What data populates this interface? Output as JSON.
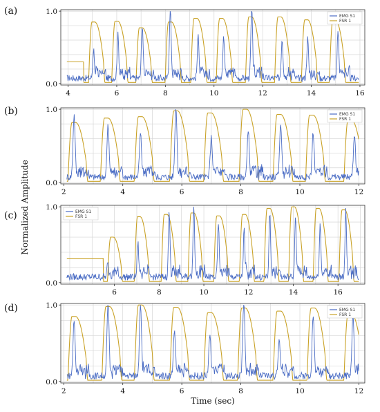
{
  "figure": {
    "ylabel": "Normalized Amplitude",
    "xlabel": "Time (sec)"
  },
  "colors": {
    "emg": "#4a6cc4",
    "fsr": "#c9a227",
    "grid": "#d6d6d6",
    "axis": "#333333"
  },
  "chart_data": [
    {
      "type": "line",
      "label": "(a)",
      "xlim": [
        3.7,
        16.2
      ],
      "ylim": [
        -0.02,
        1.02
      ],
      "xticks": [
        4,
        6,
        8,
        10,
        12,
        14,
        16
      ],
      "yticks": [
        0.0,
        1.0
      ],
      "legend": {
        "placement": "top-right",
        "entries": [
          "EMG S1",
          "FSR 1"
        ]
      },
      "grid": true,
      "fsr_peaks": [
        [
          5.1,
          0.85
        ],
        [
          6.05,
          0.86
        ],
        [
          7.05,
          0.77
        ],
        [
          8.25,
          0.85
        ],
        [
          9.3,
          0.9
        ],
        [
          10.35,
          0.9
        ],
        [
          11.55,
          0.92
        ],
        [
          12.75,
          0.92
        ],
        [
          13.85,
          0.88
        ],
        [
          15.0,
          0.87
        ]
      ],
      "emg_peaks": [
        [
          5.05,
          0.4
        ],
        [
          6.05,
          0.6
        ],
        [
          7.05,
          0.75
        ],
        [
          8.2,
          1.0
        ],
        [
          9.35,
          0.6
        ],
        [
          10.4,
          0.58
        ],
        [
          11.55,
          0.95
        ],
        [
          12.8,
          0.55
        ],
        [
          13.85,
          0.55
        ],
        [
          15.1,
          0.65
        ]
      ],
      "fsr_start": 0.3
    },
    {
      "type": "line",
      "label": "(b)",
      "xlim": [
        1.9,
        12.2
      ],
      "ylim": [
        -0.02,
        1.02
      ],
      "xticks": [
        2,
        4,
        6,
        8,
        10,
        12
      ],
      "yticks": [
        0.0,
        1.0
      ],
      "legend": {
        "placement": "top-right",
        "entries": [
          "EMG S1",
          "FSR 1"
        ]
      },
      "grid": true,
      "fsr_peaks": [
        [
          2.4,
          0.82
        ],
        [
          3.5,
          0.88
        ],
        [
          4.65,
          0.9
        ],
        [
          5.85,
          0.98
        ],
        [
          7.0,
          0.95
        ],
        [
          8.2,
          1.0
        ],
        [
          9.35,
          0.93
        ],
        [
          10.45,
          0.92
        ],
        [
          11.75,
          0.85
        ]
      ],
      "emg_peaks": [
        [
          2.35,
          0.85
        ],
        [
          3.5,
          0.7
        ],
        [
          4.6,
          0.6
        ],
        [
          5.8,
          1.0
        ],
        [
          7.0,
          0.55
        ],
        [
          8.25,
          0.62
        ],
        [
          9.35,
          0.75
        ],
        [
          10.45,
          0.62
        ],
        [
          11.85,
          0.6
        ]
      ],
      "fsr_start": 0.02
    },
    {
      "type": "line",
      "label": "(c)",
      "xlim": [
        3.6,
        17.2
      ],
      "ylim": [
        -0.02,
        1.02
      ],
      "xticks": [
        6,
        8,
        10,
        12,
        14,
        16
      ],
      "yticks": [
        0.0,
        1.0
      ],
      "legend": {
        "placement": "top-left",
        "entries": [
          "EMG S1",
          "FSR 1"
        ]
      },
      "grid": true,
      "fsr_peaks": [
        [
          5.95,
          0.6
        ],
        [
          7.15,
          0.87
        ],
        [
          8.35,
          0.9
        ],
        [
          9.55,
          0.92
        ],
        [
          10.7,
          0.88
        ],
        [
          11.85,
          0.9
        ],
        [
          12.95,
          0.98
        ],
        [
          14.05,
          1.0
        ],
        [
          15.15,
          0.98
        ],
        [
          16.3,
          0.96
        ]
      ],
      "emg_peaks": [
        [
          5.7,
          0.18
        ],
        [
          7.05,
          0.45
        ],
        [
          8.45,
          0.86
        ],
        [
          9.55,
          1.0
        ],
        [
          10.65,
          0.72
        ],
        [
          11.8,
          0.62
        ],
        [
          12.95,
          0.82
        ],
        [
          14.1,
          0.8
        ],
        [
          15.2,
          0.7
        ],
        [
          16.35,
          0.9
        ]
      ],
      "fsr_start": 0.32
    },
    {
      "type": "line",
      "label": "(d)",
      "xlim": [
        1.9,
        12.2
      ],
      "ylim": [
        -0.02,
        1.02
      ],
      "xticks": [
        2,
        4,
        6,
        8,
        10,
        12
      ],
      "yticks": [
        0.0,
        1.0
      ],
      "legend": {
        "placement": "top-right",
        "entries": [
          "EMG S1",
          "FSR 1"
        ]
      },
      "grid": true,
      "fsr_peaks": [
        [
          2.4,
          0.85
        ],
        [
          3.55,
          0.98
        ],
        [
          4.65,
          1.0
        ],
        [
          5.85,
          0.97
        ],
        [
          7.0,
          0.9
        ],
        [
          8.15,
          0.96
        ],
        [
          9.35,
          0.92
        ],
        [
          10.5,
          0.96
        ],
        [
          11.75,
          0.88
        ]
      ],
      "emg_peaks": [
        [
          2.35,
          0.72
        ],
        [
          3.5,
          0.96
        ],
        [
          4.6,
          0.98
        ],
        [
          5.75,
          0.6
        ],
        [
          6.95,
          0.52
        ],
        [
          8.1,
          0.98
        ],
        [
          9.3,
          0.5
        ],
        [
          10.45,
          0.8
        ],
        [
          11.8,
          0.8
        ]
      ],
      "fsr_start": 0.02
    }
  ]
}
